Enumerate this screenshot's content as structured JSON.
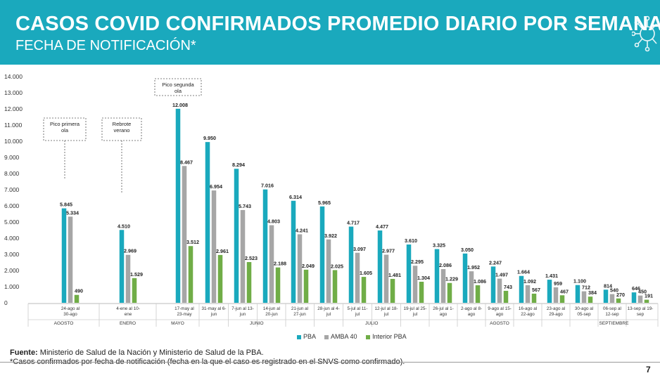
{
  "header": {
    "title": "CASOS COVID CONFIRMADOS PROMEDIO DIARIO POR SEMANA",
    "subtitle": "FECHA DE NOTIFICACIÓN*"
  },
  "footer": {
    "source_label": "Fuente:",
    "source_text": " Ministerio de Salud de la Nación y Ministerio de Salud de la PBA.",
    "note": "*Casos confirmados por fecha de notificación (fecha en la que el caso es registrado en el SNVS como confirmado).",
    "page": "7"
  },
  "colors": {
    "header_bg": "#1aa9bd",
    "pba": "#1aa9bd",
    "amba": "#a6a6a6",
    "interior": "#70ad47"
  },
  "icons": [
    "virus-icon"
  ],
  "chart_data": {
    "type": "bar",
    "ylim": [
      0,
      14000
    ],
    "yticks": [
      "0",
      "1.000",
      "2.000",
      "3.000",
      "4.000",
      "5.000",
      "6.000",
      "7.000",
      "8.000",
      "9.000",
      "10.000",
      "11.000",
      "12.000",
      "13.000",
      "14.000"
    ],
    "categories": [
      "24-ago al 30-ago",
      "4-ene al 10-ene",
      "17-may al 23-may",
      "31-may al 6-jun",
      "7-jun al 13-jun",
      "14-jun al 20-jun",
      "21-jun al 27-jun",
      "28-jun al 4-jul",
      "5-jul al 11-jul",
      "12-jul al 18-jul",
      "19-jul al 25-jul",
      "26-jul al 1-ago",
      "2-ago al 8-ago",
      "9-ago al 15-ago",
      "16-ago al 22-ago",
      "23-ago al 29-ago",
      "30-ago al 05-sep",
      "06-sep al 12-sep",
      "13-sep al 19-sep"
    ],
    "category_lines": [
      [
        "24-ago al",
        "30-ago"
      ],
      [
        "4-ene al 10-",
        "ene"
      ],
      [
        "17-may al",
        "23-may"
      ],
      [
        "31-may al 6-",
        "jun"
      ],
      [
        "7-jun al 13-",
        "jun"
      ],
      [
        "14-jun al",
        "20-jun"
      ],
      [
        "21-jun al",
        "27-jun"
      ],
      [
        "28-jun al 4-",
        "jul"
      ],
      [
        "5-jul al 11-",
        "jul"
      ],
      [
        "12-jul al 18-",
        "jul"
      ],
      [
        "19-jul al 25-",
        "jul"
      ],
      [
        "26-jul al 1-",
        "ago"
      ],
      [
        "2-ago al 8-",
        "ago"
      ],
      [
        "9-ago al 15-",
        "ago"
      ],
      [
        "16-ago al",
        "22-ago"
      ],
      [
        "23-ago al",
        "29-ago"
      ],
      [
        "30-ago al",
        "05-sep"
      ],
      [
        "06-sep al",
        "12-sep"
      ],
      [
        "13-sep al 19-",
        "sep"
      ]
    ],
    "series": [
      {
        "name": "PBA",
        "values": [
          5845,
          4510,
          12008,
          9950,
          8294,
          7016,
          6314,
          5965,
          4717,
          4477,
          3610,
          3325,
          3050,
          2247,
          1664,
          1431,
          1100,
          814,
          646
        ],
        "labels": [
          "5.845",
          "4.510",
          "12.008",
          "9.950",
          "8.294",
          "7.016",
          "6.314",
          "5.965",
          "4.717",
          "4.477",
          "3.610",
          "3.325",
          "3.050",
          "2.247",
          "1.664",
          "1.431",
          "1.100",
          "814",
          "646"
        ]
      },
      {
        "name": "AMBA 40",
        "values": [
          5334,
          2969,
          8467,
          6954,
          5743,
          4803,
          4241,
          3922,
          3097,
          2977,
          2295,
          2086,
          1952,
          1497,
          1092,
          959,
          712,
          540,
          450
        ],
        "labels": [
          "5.334",
          "2.969",
          "8.467",
          "6.954",
          "5.743",
          "4.803",
          "4.241",
          "3.922",
          "3.097",
          "2.977",
          "2.295",
          "2.086",
          "1.952",
          "1.497",
          "1.092",
          "959",
          "712",
          "540",
          "450"
        ]
      },
      {
        "name": "Interior PBA",
        "values": [
          490,
          1529,
          3512,
          2961,
          2523,
          2188,
          2049,
          2025,
          1605,
          1481,
          1304,
          1229,
          1086,
          743,
          567,
          467,
          384,
          270,
          191
        ],
        "labels": [
          "490",
          "1.529",
          "3.512",
          "2.961",
          "2.523",
          "2.188",
          "2.049",
          "2.025",
          "1.605",
          "1.481",
          "1.304",
          "1.229",
          "1.086",
          "743",
          "567",
          "467",
          "384",
          "270",
          "191"
        ]
      }
    ],
    "months": [
      {
        "label": "AGOSTO",
        "from": 0,
        "to": 0
      },
      {
        "label": "ENERO",
        "from": 1,
        "to": 1
      },
      {
        "label": "MAYO",
        "from": 2,
        "to": 2
      },
      {
        "label": "JUNIO",
        "from": 3,
        "to": 6
      },
      {
        "label": "JULIO",
        "from": 7,
        "to": 10
      },
      {
        "label": "AGOSTO",
        "from": 11,
        "to": 15
      },
      {
        "label": "SEPTIEMBRE",
        "from": 16,
        "to": 18
      }
    ],
    "annotations": [
      {
        "lines": [
          "Pico primera",
          "ola"
        ],
        "category": 0
      },
      {
        "lines": [
          "Rebrote",
          "verano"
        ],
        "category": 1
      },
      {
        "lines": [
          "Pico segunda",
          "ola"
        ],
        "category": 2
      }
    ],
    "legend": {
      "placement": "bottom",
      "items": [
        "PBA",
        "AMBA 40",
        "Interior PBA"
      ]
    },
    "grid": false
  }
}
